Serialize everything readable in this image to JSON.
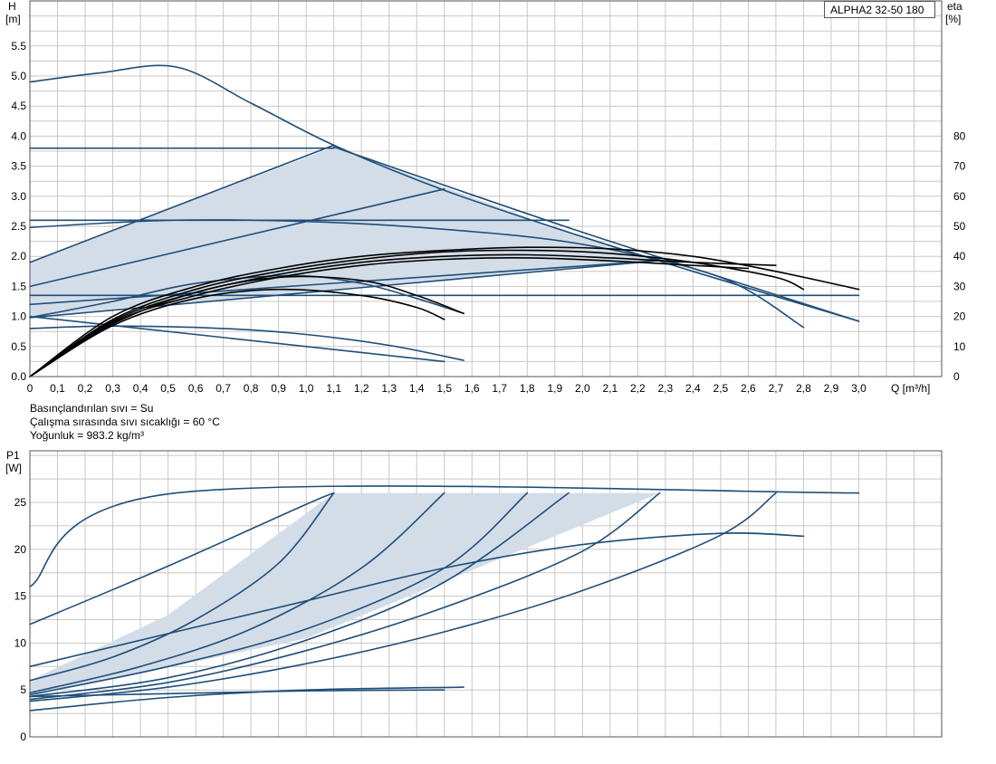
{
  "notes": {
    "fluid": "Basınçlandırılan sıvı = Su",
    "temperature": "Çalışma sırasında sıvı sıcaklığı = 60 °C",
    "density": "Yoğunluk = 983.2 kg/m³"
  },
  "colors": {
    "curve": "#1f4e79",
    "efficiency": "#000000",
    "fill": "#d3dde8",
    "grid": "#c8c8c8"
  },
  "chart_data": [
    {
      "type": "line",
      "model_label": "ALPHA2 32-50 180",
      "ylabel": "H",
      "ylabel_unit": "[m]",
      "y2label": "eta",
      "y2label_unit": "[%]",
      "xlabel": "Q [m³/h]",
      "xlim": [
        0,
        3.3
      ],
      "ylim": [
        0,
        6.25
      ],
      "y2lim": [
        0,
        125
      ],
      "x_ticks": [
        "0",
        "0,1",
        "0,2",
        "0,3",
        "0,4",
        "0,5",
        "0,6",
        "0,7",
        "0,8",
        "0,9",
        "1,0",
        "1,1",
        "1,2",
        "1,3",
        "1,4",
        "1,5",
        "1,6",
        "1,7",
        "1,8",
        "1,9",
        "2,0",
        "2,1",
        "2,2",
        "2,3",
        "2,4",
        "2,5",
        "2,6",
        "2,7",
        "2,8",
        "2,9",
        "3,0"
      ],
      "y_ticks": [
        "0.0",
        "0.5",
        "1.0",
        "1.5",
        "2.0",
        "2.5",
        "3.0",
        "3.5",
        "4.0",
        "4.5",
        "5.0",
        "5.5"
      ],
      "y2_ticks": [
        "0",
        "10",
        "20",
        "30",
        "40",
        "50",
        "60",
        "70",
        "80"
      ],
      "grid": true,
      "shaded_regions": [
        [
          [
            0,
            1.9
          ],
          [
            1.1,
            3.82
          ],
          [
            1.95,
            2.4
          ],
          [
            2.28,
            1.93
          ],
          [
            0,
            1.0
          ]
        ]
      ],
      "series": [
        {
          "kind": "head",
          "x": [
            0,
            0.25,
            0.53,
            0.8,
            1.1,
            1.5,
            1.95,
            2.4,
            3.0
          ],
          "y": [
            4.9,
            5.05,
            5.15,
            4.55,
            3.85,
            3.1,
            2.4,
            1.75,
            0.92
          ]
        },
        {
          "kind": "head",
          "x": [
            0,
            1.1
          ],
          "y": [
            3.8,
            3.8
          ]
        },
        {
          "kind": "head",
          "x": [
            0,
            1.1
          ],
          "y": [
            1.9,
            3.85
          ]
        },
        {
          "kind": "head",
          "x": [
            1.1,
            2.0,
            3.0
          ],
          "y": [
            3.82,
            2.4,
            0.92
          ]
        },
        {
          "kind": "head",
          "x": [
            0,
            1.95
          ],
          "y": [
            2.6,
            2.6
          ]
        },
        {
          "kind": "head",
          "x": [
            0,
            1.5
          ],
          "y": [
            1.5,
            3.12
          ]
        },
        {
          "kind": "head",
          "x": [
            0,
            0.5,
            1.0,
            1.5,
            2.0,
            2.5,
            2.8
          ],
          "y": [
            2.48,
            2.6,
            2.58,
            2.45,
            2.2,
            1.65,
            0.82
          ]
        },
        {
          "kind": "head",
          "x": [
            0,
            2.28
          ],
          "y": [
            1.2,
            1.93
          ]
        },
        {
          "kind": "head",
          "x": [
            0,
            3.0
          ],
          "y": [
            1.35,
            1.35
          ]
        },
        {
          "kind": "head",
          "x": [
            0,
            2.28
          ],
          "y": [
            0.98,
            1.93
          ]
        },
        {
          "kind": "head",
          "x": [
            0,
            0.3,
            0.7,
            1.0,
            1.3,
            1.57
          ],
          "y": [
            0.8,
            0.84,
            0.8,
            0.7,
            0.52,
            0.27
          ]
        },
        {
          "kind": "head",
          "x": [
            0,
            1.5
          ],
          "y": [
            1.0,
            0.25
          ]
        },
        {
          "kind": "head",
          "x": [
            0,
            0.3,
            0.6,
            0.95,
            1.2,
            1.4,
            1.57
          ],
          "y": [
            0.98,
            1.25,
            1.55,
            1.68,
            1.55,
            1.3,
            1.05
          ]
        },
        {
          "kind": "eta",
          "x": [
            0,
            0.3,
            0.6,
            0.9,
            1.2,
            1.5,
            1.8,
            2.1,
            2.4,
            2.7,
            3.0
          ],
          "y": [
            0,
            20,
            30,
            36,
            40,
            42,
            43,
            42.5,
            40,
            35,
            29
          ]
        },
        {
          "kind": "eta",
          "x": [
            0,
            0.3,
            0.6,
            0.9,
            1.2,
            1.5,
            1.8,
            2.1,
            2.4,
            2.7,
            2.8
          ],
          "y": [
            0,
            19,
            29,
            35,
            39,
            41.5,
            42,
            41,
            38,
            33,
            29
          ]
        },
        {
          "kind": "eta",
          "x": [
            0,
            0.3,
            0.6,
            0.9,
            1.2,
            1.5,
            1.8,
            2.1,
            2.4,
            2.7
          ],
          "y": [
            0,
            18.5,
            28,
            34,
            38,
            40,
            40.5,
            39.5,
            38,
            37
          ]
        },
        {
          "kind": "eta",
          "x": [
            0,
            0.3,
            0.6,
            0.9,
            1.2,
            1.5,
            1.8,
            2.1,
            2.4,
            2.6
          ],
          "y": [
            0,
            18,
            27,
            33,
            37,
            39,
            39.5,
            38.5,
            37,
            36
          ]
        },
        {
          "kind": "eta",
          "x": [
            0,
            0.3,
            0.6,
            0.9,
            1.2,
            1.4,
            1.57
          ],
          "y": [
            0,
            17.5,
            28,
            33,
            32,
            27,
            21
          ]
        },
        {
          "kind": "eta",
          "x": [
            0,
            0.3,
            0.6,
            0.9,
            1.2,
            1.4,
            1.5
          ],
          "y": [
            0,
            17,
            26,
            29,
            27,
            23,
            19
          ]
        }
      ]
    },
    {
      "type": "line",
      "ylabel": "P1",
      "ylabel_unit": "[W]",
      "xlim": [
        0,
        3.3
      ],
      "ylim": [
        0,
        30.5
      ],
      "y_ticks": [
        "0",
        "5",
        "10",
        "15",
        "20",
        "25"
      ],
      "grid": true,
      "shaded_regions": [
        [
          [
            0,
            6
          ],
          [
            0.5,
            13
          ],
          [
            1.1,
            26
          ],
          [
            2.28,
            26
          ],
          [
            1.0,
            10.5
          ],
          [
            0,
            4.3
          ]
        ]
      ],
      "series": [
        {
          "kind": "power",
          "x": [
            0,
            0.53,
            3.0
          ],
          "y": [
            16,
            26,
            26
          ]
        },
        {
          "kind": "power",
          "x": [
            0,
            0.5,
            1.0,
            1.1
          ],
          "y": [
            12,
            18.2,
            24.8,
            26
          ]
        },
        {
          "kind": "power",
          "x": [
            0,
            0.3,
            0.6,
            0.9,
            1.1
          ],
          "y": [
            6,
            8.5,
            12.5,
            18.5,
            26
          ]
        },
        {
          "kind": "power",
          "x": [
            0,
            0.4,
            0.8,
            1.2,
            1.5
          ],
          "y": [
            4.7,
            7.5,
            11.5,
            18,
            26
          ]
        },
        {
          "kind": "power",
          "x": [
            0,
            0.5,
            1.0,
            1.5,
            1.8
          ],
          "y": [
            4.5,
            7.5,
            11.5,
            18,
            26
          ]
        },
        {
          "kind": "power",
          "x": [
            0,
            0.5,
            1.0,
            1.5,
            1.95
          ],
          "y": [
            4.3,
            6.3,
            10.3,
            16.5,
            26
          ]
        },
        {
          "kind": "power",
          "x": [
            0,
            0.5,
            1.0,
            1.5,
            2.0,
            2.28
          ],
          "y": [
            4.0,
            5.8,
            9.2,
            13.8,
            19.8,
            26
          ]
        },
        {
          "kind": "power",
          "x": [
            0,
            0.5,
            1.0,
            1.5,
            2.0,
            2.5,
            2.7
          ],
          "y": [
            3.8,
            5.3,
            7.8,
            11.2,
            15.6,
            21.5,
            26
          ]
        },
        {
          "kind": "power",
          "x": [
            0,
            0.5,
            1.0,
            1.5,
            2.0,
            2.5,
            2.8
          ],
          "y": [
            7.5,
            11,
            14.5,
            18,
            20.5,
            21.7,
            21.4
          ]
        },
        {
          "kind": "power",
          "x": [
            0,
            0.5,
            1.0,
            1.57
          ],
          "y": [
            2.8,
            4.2,
            5.0,
            5.3
          ]
        },
        {
          "kind": "power",
          "x": [
            0,
            0.5,
            1.0,
            1.5
          ],
          "y": [
            4.3,
            4.6,
            4.9,
            5.0
          ]
        }
      ]
    }
  ]
}
